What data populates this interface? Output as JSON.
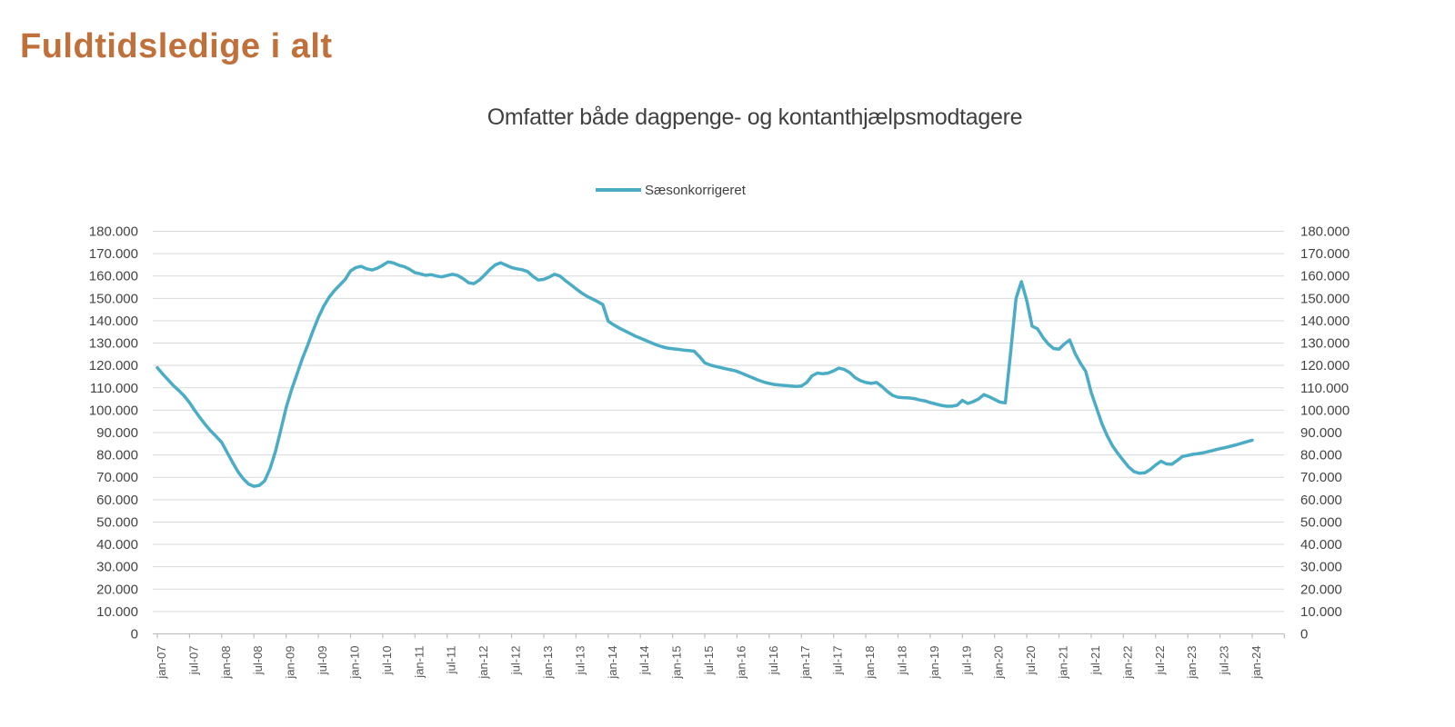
{
  "header": {
    "title": "Fuldtidsledige i alt",
    "title_color": "#C0703A"
  },
  "chart": {
    "subtitle": "Omfatter både dagpenge- og kontanthjælpsmodtagere",
    "legend": [
      {
        "label": "Sæsonkorrigeret",
        "color": "#4BACC6"
      }
    ]
  },
  "chart_data": {
    "type": "line",
    "title": "Omfatter både dagpenge- og kontanthjælpsmodtagere",
    "grid": "horizontal",
    "legend_position": "top-center",
    "y_axis_sides": [
      "left",
      "right"
    ],
    "ylim": [
      0,
      180000
    ],
    "y_tick_step": 10000,
    "y_tick_labels": [
      "0",
      "10.000",
      "20.000",
      "30.000",
      "40.000",
      "50.000",
      "60.000",
      "70.000",
      "80.000",
      "90.000",
      "100.000",
      "110.000",
      "120.000",
      "130.000",
      "140.000",
      "150.000",
      "160.000",
      "170.000",
      "180.000"
    ],
    "x_tick_labels": [
      "jan-07",
      "jul-07",
      "jan-08",
      "jul-08",
      "jan-09",
      "jul-09",
      "jan-10",
      "jul-10",
      "jan-11",
      "jul-11",
      "jan-12",
      "jul-12",
      "jan-13",
      "jul-13",
      "jan-14",
      "jul-14",
      "jan-15",
      "jul-15",
      "jan-16",
      "jul-16",
      "jan-17",
      "jul-17",
      "jan-18",
      "jul-18",
      "jan-19",
      "jul-19",
      "jan-20",
      "jul-20",
      "jan-21",
      "jul-21",
      "jan-22",
      "jul-22",
      "jan-23",
      "jul-23",
      "jan-24"
    ],
    "series": [
      {
        "name": "Sæsonkorrigeret",
        "color": "#4BACC6",
        "frequency": "monthly",
        "start": "jan-07",
        "end": "jan-24",
        "values": [
          119000,
          116200,
          113600,
          111000,
          108800,
          106400,
          103400,
          99800,
          96500,
          93400,
          90600,
          88200,
          85600,
          81200,
          76800,
          72600,
          69400,
          67000,
          66000,
          66400,
          68400,
          73800,
          81400,
          91000,
          101000,
          109000,
          116000,
          123000,
          129000,
          135500,
          141500,
          146500,
          150500,
          153500,
          156000,
          158500,
          162300,
          163800,
          164300,
          163200,
          162700,
          163500,
          164800,
          166300,
          165800,
          164800,
          164200,
          163000,
          161500,
          161000,
          160300,
          160600,
          160000,
          159600,
          160200,
          160800,
          160200,
          158800,
          157000,
          156600,
          158200,
          160500,
          163000,
          165000,
          165900,
          164800,
          163800,
          163200,
          162800,
          162000,
          159800,
          158200,
          158500,
          159500,
          160800,
          160000,
          158000,
          156200,
          154300,
          152500,
          151000,
          149800,
          148600,
          147200,
          139800,
          138200,
          136800,
          135600,
          134400,
          133200,
          132200,
          131200,
          130200,
          129200,
          128400,
          127800,
          127500,
          127200,
          126900,
          126700,
          126400,
          124000,
          121200,
          120200,
          119600,
          119000,
          118500,
          118000,
          117400,
          116400,
          115400,
          114400,
          113400,
          112600,
          112000,
          111500,
          111200,
          111000,
          110800,
          110600,
          110800,
          112400,
          115400,
          116600,
          116300,
          116600,
          117600,
          118800,
          118200,
          116800,
          114600,
          113200,
          112400,
          112000,
          112400,
          110600,
          108400,
          106600,
          105800,
          105600,
          105500,
          105200,
          104600,
          104200,
          103400,
          102800,
          102200,
          101800,
          101800,
          102200,
          104400,
          103000,
          103800,
          105000,
          107000,
          106000,
          104800,
          103600,
          103300,
          126000,
          150000,
          157500,
          149000,
          137600,
          136400,
          132600,
          129600,
          127600,
          127300,
          129600,
          131400,
          125400,
          121000,
          117300,
          108000,
          101000,
          94000,
          88500,
          84000,
          80500,
          77500,
          74500,
          72500,
          71800,
          72000,
          73500,
          75500,
          77200,
          76000,
          75800,
          77500,
          79300,
          79800,
          80300,
          80600,
          81000,
          81600,
          82200,
          82800,
          83300,
          83900,
          84500,
          85200,
          85900,
          86600
        ]
      }
    ],
    "style": {
      "gridline_color": "#D9D9D9",
      "axis_color": "#BFBFBF",
      "line_width": 3.5
    }
  }
}
